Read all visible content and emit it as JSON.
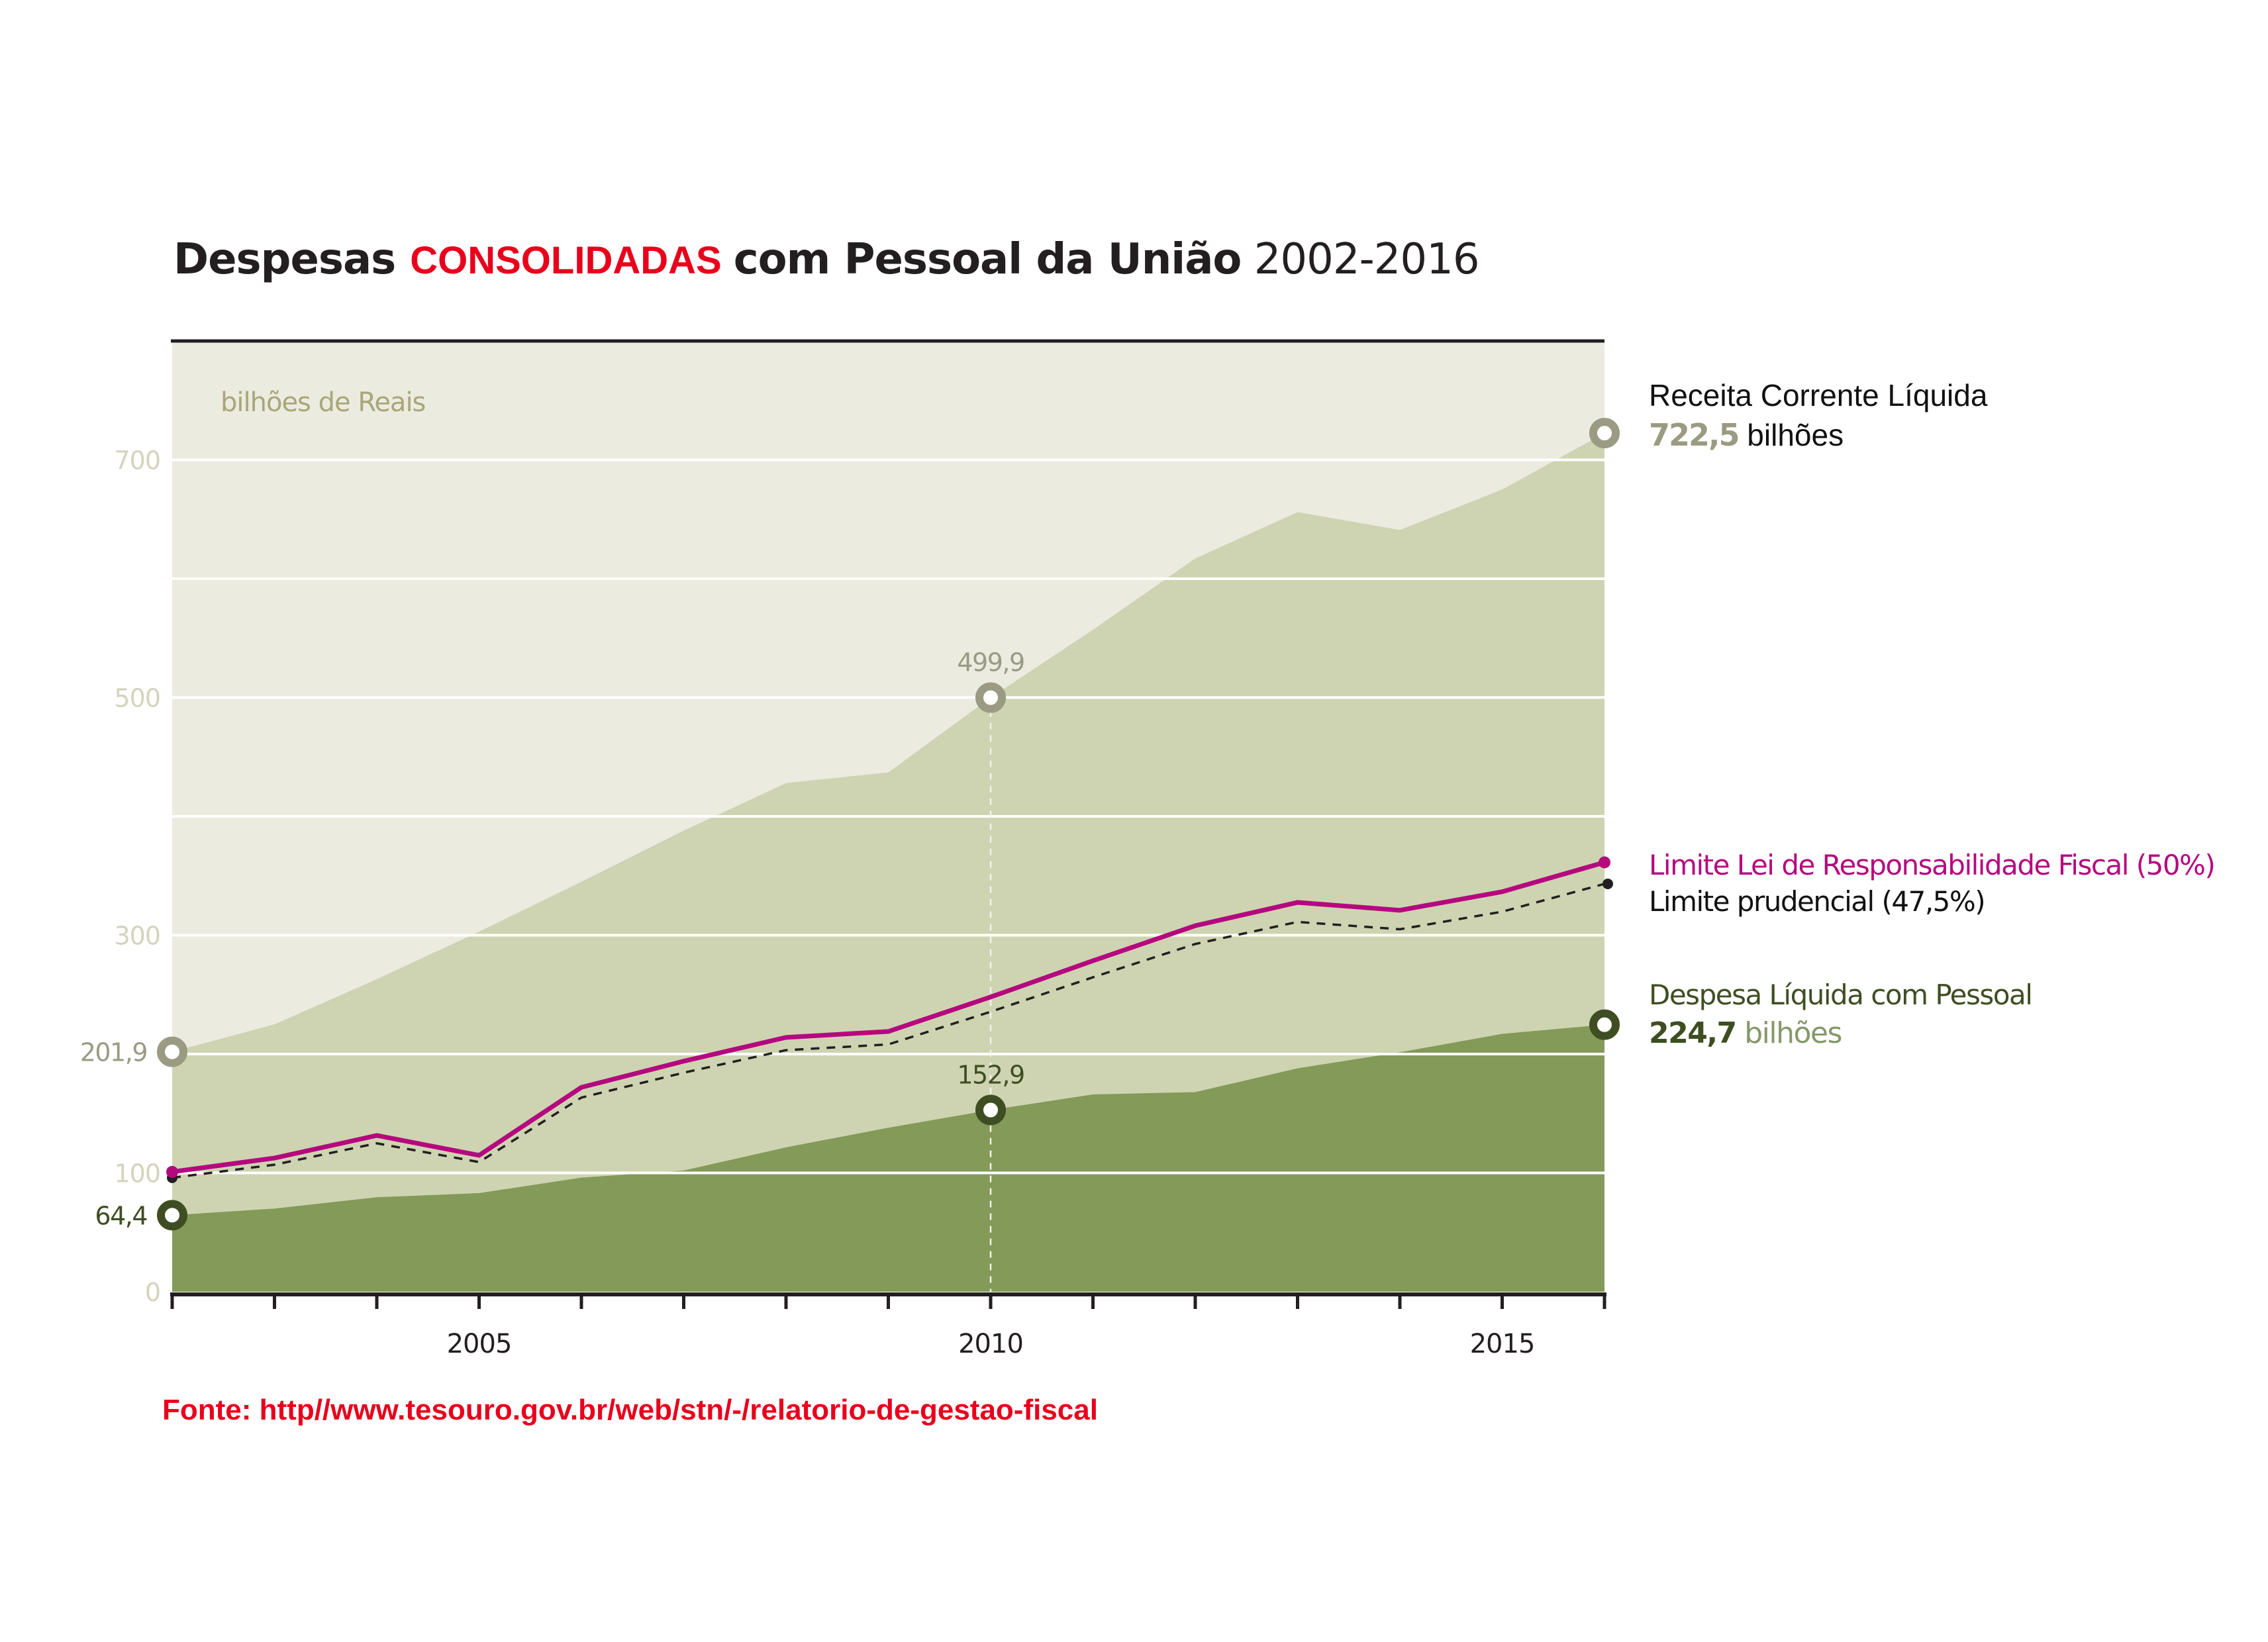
{
  "title": {
    "part1": "Despesas",
    "highlight": "CONSOLIDADAS",
    "part2": "com Pessoal da União",
    "years": "2002-2016"
  },
  "source": "Fonte: http//www.tesouro.gov.br/web/stn/-/relatorio-de-gestao-fiscal",
  "colors": {
    "rcl_area": "#ced4b1",
    "background_area": "#ebebe0",
    "dlp_area": "#839a59",
    "lrf_line": "#b5087f",
    "prudential_line": "#231f20",
    "rcl_marker": "#9a9b82",
    "dlp_marker": "#3e4e22",
    "title_highlight": "#e8001c"
  },
  "labels": {
    "units": "bilhões de Reais",
    "rcl_name": "Receita Corrente Líquida",
    "rcl_value": "722,5",
    "rcl_unit": "bilhões",
    "lrf_name": "Limite Lei de Responsabilidade Fiscal (50%)",
    "prudential_name": "Limite prudencial (47,5%)",
    "dlp_name": "Despesa Líquida com Pessoal",
    "dlp_value": "224,7",
    "dlp_unit": "bilhões"
  },
  "chart_data": {
    "type": "area",
    "title": "Despesas CONSOLIDADAS com Pessoal da União 2002-2016",
    "xlabel": "",
    "ylabel": "bilhões de Reais",
    "x": [
      2002,
      2003,
      2004,
      2005,
      2006,
      2007,
      2008,
      2009,
      2010,
      2011,
      2012,
      2013,
      2014,
      2015,
      2016
    ],
    "xlim": [
      2002,
      2016
    ],
    "ylim": [
      0,
      790
    ],
    "x_tick_labels": [
      "2005",
      "2010",
      "2015"
    ],
    "x_tick_label_values": [
      2005,
      2010,
      2015
    ],
    "y_gridlines": [
      100,
      200,
      300,
      400,
      500,
      600,
      700
    ],
    "y_tick_labels": [
      "0",
      "100",
      "300",
      "500",
      "700"
    ],
    "y_tick_values": [
      0,
      100,
      300,
      500,
      700
    ],
    "grid": true,
    "series": [
      {
        "name": "Receita Corrente Líquida",
        "kind": "area",
        "values": [
          201.9,
          225,
          263,
          303,
          345,
          388,
          428,
          437,
          499.9,
          557,
          617,
          656,
          641,
          675,
          722.5
        ]
      },
      {
        "name": "Limite Lei de Responsabilidade Fiscal (50%)",
        "kind": "line",
        "values": [
          100.9,
          112.5,
          131.5,
          114.8,
          172,
          194,
          214,
          219,
          248,
          278.5,
          308,
          327.6,
          321,
          336.6,
          361.3
        ]
      },
      {
        "name": "Limite prudencial (47,5%)",
        "kind": "dashed-line",
        "values": [
          95.9,
          106.9,
          124.9,
          109.1,
          163.4,
          184.3,
          203.3,
          208.1,
          235.6,
          264.6,
          292.6,
          311.2,
          305,
          319.8,
          343.2
        ]
      },
      {
        "name": "Despesa Líquida com Pessoal",
        "kind": "area",
        "values": [
          64.4,
          70,
          79.5,
          83,
          96,
          102,
          121.5,
          138,
          152.9,
          166,
          168,
          188,
          201.5,
          217,
          224.7
        ]
      }
    ],
    "annotations": [
      {
        "series": "Receita Corrente Líquida",
        "x": 2002,
        "text": "201,9",
        "side": "left"
      },
      {
        "series": "Despesa Líquida com Pessoal",
        "x": 2002,
        "text": "64,4",
        "side": "left"
      },
      {
        "series": "Receita Corrente Líquida",
        "x": 2010,
        "text": "499,9",
        "side": "above"
      },
      {
        "series": "Despesa Líquida com Pessoal",
        "x": 2010,
        "text": "152,9",
        "side": "above"
      }
    ],
    "legend": "right"
  }
}
